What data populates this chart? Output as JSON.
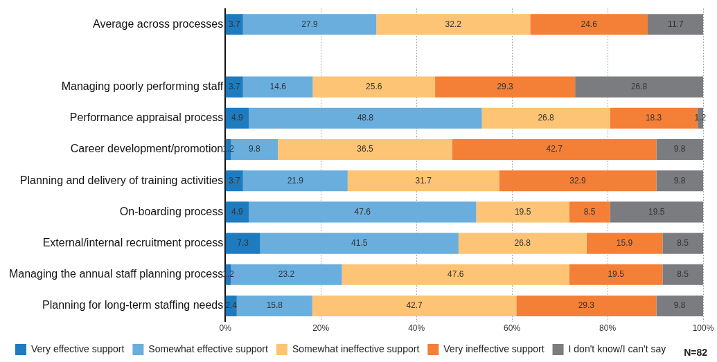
{
  "chart_data": {
    "type": "bar",
    "orientation": "horizontal",
    "stacked": true,
    "data_labels": true,
    "grid": "x",
    "legend": "bottom",
    "annotations": [
      "N=82"
    ],
    "categories": [
      "Average across processes",
      null,
      "Managing poorly performing staff",
      "Performance appraisal process",
      "Career development/promotion",
      "Planning and delivery of training activities",
      "On-boarding process",
      "External/internal recruitment process",
      "Managing the annual staff planning process",
      "Planning for long-term staffing needs"
    ],
    "xlim": [
      0,
      100
    ],
    "xticks": [
      {
        "value": 0,
        "label": "0%"
      },
      {
        "value": 20,
        "label": "20%"
      },
      {
        "value": 40,
        "label": "40%"
      },
      {
        "value": 60,
        "label": "60%"
      },
      {
        "value": 80,
        "label": "80%"
      },
      {
        "value": 100,
        "label": "100%"
      }
    ],
    "series": [
      {
        "name": "Very effective support",
        "color": "#1f7bbf",
        "values": [
          3.7,
          null,
          3.7,
          4.9,
          1.2,
          3.7,
          4.9,
          7.3,
          1.2,
          2.4
        ]
      },
      {
        "name": "Somewhat effective support",
        "color": "#6aaede",
        "values": [
          27.9,
          null,
          14.6,
          48.8,
          9.8,
          21.9,
          47.6,
          41.5,
          23.2,
          15.8
        ]
      },
      {
        "name": "Somewhat ineffective support",
        "color": "#fcc474",
        "values": [
          32.2,
          null,
          25.6,
          26.8,
          36.5,
          31.7,
          19.5,
          26.8,
          47.6,
          42.7
        ]
      },
      {
        "name": "Very ineffective support",
        "color": "#f47f36",
        "values": [
          24.6,
          null,
          29.3,
          18.3,
          42.7,
          32.9,
          8.5,
          15.9,
          19.5,
          29.3
        ]
      },
      {
        "name": "I don't know/I can't say",
        "color": "#7b7c80",
        "values": [
          11.7,
          null,
          26.8,
          1.2,
          9.8,
          9.8,
          19.5,
          8.5,
          8.5,
          9.8
        ]
      }
    ]
  }
}
